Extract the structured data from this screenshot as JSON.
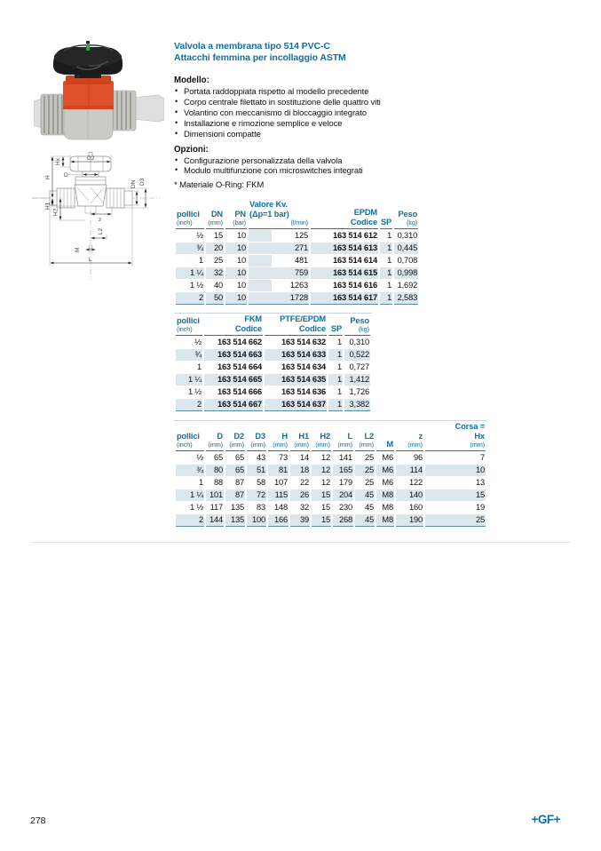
{
  "page": {
    "number": "278",
    "logo": "+GF+"
  },
  "header": {
    "title1": "Valvola a membrana tipo 514 PVC-C",
    "title2": "Attacchi femmina per incollaggio ASTM"
  },
  "modello": {
    "label": "Modello:",
    "bullets": [
      "Portata raddoppiata rispetto al modello precedente",
      "Corpo centrale filettato in sostituzione delle quattro viti",
      "Volantino con meccanismo di bloccaggio integrato",
      "Installazione e rimozione semplice e veloce",
      "Dimensioni compatte"
    ]
  },
  "opzioni": {
    "label": "Opzioni:",
    "bullets": [
      "Configurazione personalizzata della valvola",
      "Modulo multifunzione con microswitches integrati"
    ],
    "footnote": "* Materiale O-Ring: FKM"
  },
  "colors": {
    "accent_blue": "#0f6f9f",
    "row_shade": "#dce6ed",
    "valve_orange": "#e0502a"
  },
  "table1": {
    "columns": [
      {
        "lines": [
          {
            "t": "pollici"
          },
          {
            "t": "(inch)",
            "s": 1
          }
        ]
      },
      {
        "lines": [
          {
            "t": "DN"
          },
          {
            "t": "(mm)",
            "s": 1
          }
        ]
      },
      {
        "lines": [
          {
            "t": "PN"
          },
          {
            "t": "(bar)",
            "s": 1
          }
        ]
      },
      {
        "lines": [
          {
            "t": "Valore Kv.",
            "a": "l"
          },
          {
            "t": "(Δp=1 bar)",
            "a": "l"
          },
          {
            "t": "(l/min)",
            "s": 1
          }
        ]
      },
      {
        "lines": [
          {
            "t": "EPDM"
          },
          {
            "t": "Codice"
          }
        ]
      },
      {
        "lines": [
          {
            "t": "SP"
          }
        ]
      },
      {
        "lines": [
          {
            "t": "Peso"
          },
          {
            "t": "(kg)",
            "s": 1
          }
        ]
      }
    ],
    "rows": [
      [
        "½",
        "15",
        "10",
        "125",
        "163 514 612",
        "1",
        "0,310"
      ],
      [
        "¾",
        "20",
        "10",
        "271",
        "163 514 613",
        "1",
        "0,445"
      ],
      [
        "1",
        "25",
        "10",
        "481",
        "163 514 614",
        "1",
        "0,708"
      ],
      [
        "1 ¼",
        "32",
        "10",
        "759",
        "163 514 615",
        "1",
        "0,998"
      ],
      [
        "1 ½",
        "40",
        "10",
        "1263",
        "163 514 616",
        "1",
        "1,692"
      ],
      [
        "2",
        "50",
        "10",
        "1728",
        "163 514 617",
        "1",
        "2,583"
      ]
    ]
  },
  "table2": {
    "columns": [
      {
        "lines": [
          {
            "t": "pollici"
          },
          {
            "t": "(inch)",
            "s": 1
          }
        ]
      },
      {
        "lines": [
          {
            "t": "FKM"
          },
          {
            "t": "Codice"
          }
        ]
      },
      {
        "lines": [
          {
            "t": "PTFE/EPDM"
          },
          {
            "t": "Codice"
          }
        ]
      },
      {
        "lines": [
          {
            "t": "SP"
          }
        ]
      },
      {
        "lines": [
          {
            "t": "Peso"
          },
          {
            "t": "(kg)",
            "s": 1
          }
        ]
      }
    ],
    "rows": [
      [
        "½",
        "163 514 662",
        "163 514 632",
        "1",
        "0,310"
      ],
      [
        "¾",
        "163 514 663",
        "163 514 633",
        "1",
        "0,522"
      ],
      [
        "1",
        "163 514 664",
        "163 514 634",
        "1",
        "0,727"
      ],
      [
        "1 ¼",
        "163 514 665",
        "163 514 635",
        "1",
        "1,412"
      ],
      [
        "1 ½",
        "163 514 666",
        "163 514 636",
        "1",
        "1,726"
      ],
      [
        "2",
        "163 514 667",
        "163 514 637",
        "1",
        "3,382"
      ]
    ]
  },
  "table3": {
    "columns": [
      {
        "lines": [
          {
            "t": "pollici"
          },
          {
            "t": "(inch)",
            "s": 1
          }
        ]
      },
      {
        "lines": [
          {
            "t": "D"
          },
          {
            "t": "(mm)",
            "s": 1
          }
        ]
      },
      {
        "lines": [
          {
            "t": "D2"
          },
          {
            "t": "(mm)",
            "s": 1
          }
        ]
      },
      {
        "lines": [
          {
            "t": "D3"
          },
          {
            "t": "(mm)",
            "s": 1
          }
        ]
      },
      {
        "lines": [
          {
            "t": "H"
          },
          {
            "t": "(mm)",
            "s": 1
          }
        ]
      },
      {
        "lines": [
          {
            "t": "H1"
          },
          {
            "t": "(mm)",
            "s": 1
          }
        ]
      },
      {
        "lines": [
          {
            "t": "H2"
          },
          {
            "t": "(mm)",
            "s": 1
          }
        ]
      },
      {
        "lines": [
          {
            "t": "L"
          },
          {
            "t": "(mm)",
            "s": 1
          }
        ]
      },
      {
        "lines": [
          {
            "t": "L2"
          },
          {
            "t": "(mm)",
            "s": 1
          }
        ]
      },
      {
        "lines": [
          {
            "t": "M"
          }
        ]
      },
      {
        "lines": [
          {
            "t": "z"
          },
          {
            "t": "(mm)",
            "s": 1
          }
        ]
      },
      {
        "lines": [
          {
            "t": "Corsa ="
          },
          {
            "t": "Hx"
          },
          {
            "t": "(mm)",
            "s": 1
          }
        ]
      }
    ],
    "rows": [
      [
        "½",
        "65",
        "65",
        "43",
        "73",
        "14",
        "12",
        "141",
        "25",
        "M6",
        "96",
        "7"
      ],
      [
        "¾",
        "80",
        "65",
        "51",
        "81",
        "18",
        "12",
        "165",
        "25",
        "M6",
        "114",
        "10"
      ],
      [
        "1",
        "88",
        "87",
        "58",
        "107",
        "22",
        "12",
        "179",
        "25",
        "M6",
        "122",
        "13"
      ],
      [
        "1 ¼",
        "101",
        "87",
        "72",
        "115",
        "26",
        "15",
        "204",
        "45",
        "M8",
        "140",
        "15"
      ],
      [
        "1 ½",
        "117",
        "135",
        "83",
        "148",
        "32",
        "15",
        "230",
        "45",
        "M8",
        "160",
        "19"
      ],
      [
        "2",
        "144",
        "135",
        "100",
        "166",
        "39",
        "15",
        "268",
        "45",
        "M8",
        "190",
        "25"
      ]
    ]
  },
  "drawing": {
    "labels": {
      "hx": "Hx",
      "d2": "D2",
      "d": "D",
      "h": "H",
      "h1": "H1",
      "h2": "H2",
      "dn": "DN",
      "d3": "D3",
      "z": "z",
      "m": "M",
      "l2": "L2",
      "l": "L"
    }
  }
}
